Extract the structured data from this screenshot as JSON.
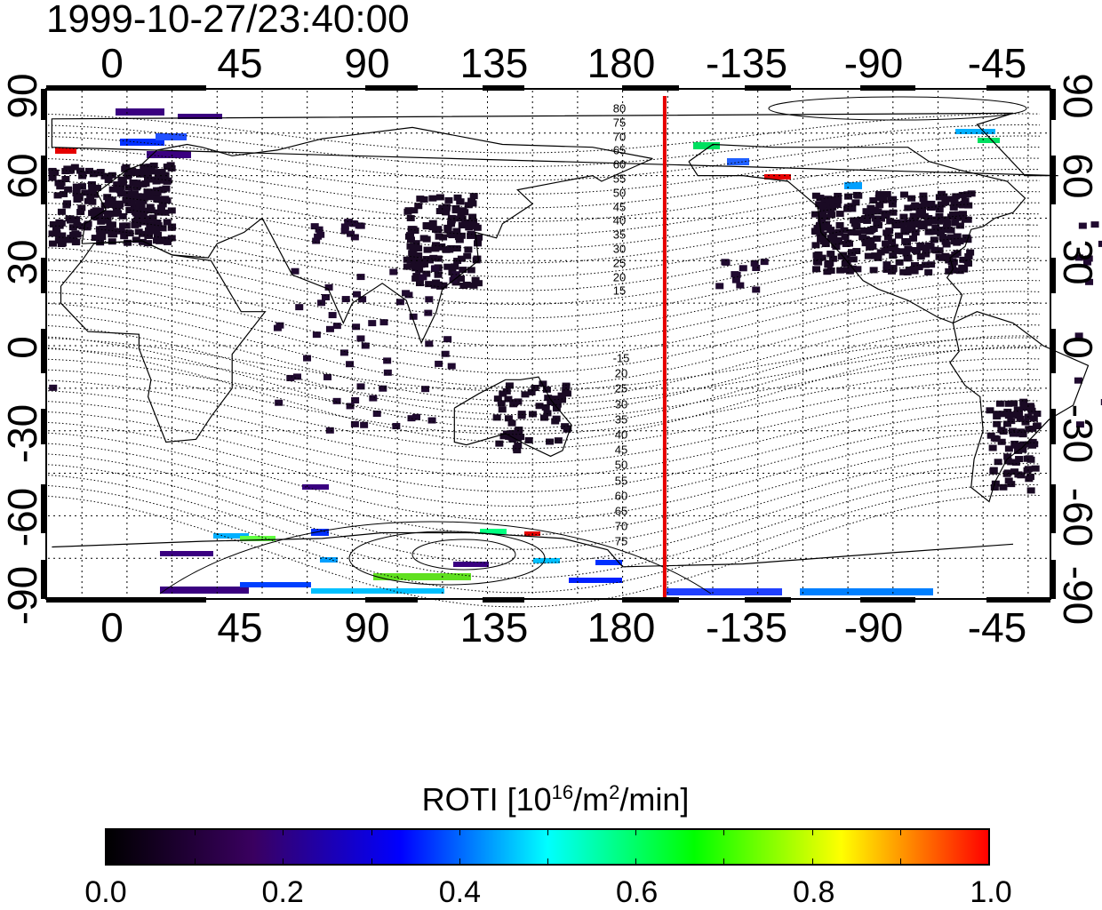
{
  "title": "1999-10-27/23:40:00",
  "map": {
    "x_ticks_top": [
      "0",
      "45",
      "90",
      "135",
      "180",
      "-135",
      "-90",
      "-45"
    ],
    "x_ticks_bottom": [
      "0",
      "45",
      "90",
      "135",
      "180",
      "-135",
      "-90",
      "-45"
    ],
    "y_ticks_left": [
      "90",
      "60",
      "30",
      "0",
      "-30",
      "-60",
      "-90"
    ],
    "y_ticks_right": [
      "90",
      "60",
      "30",
      "0",
      "-30",
      "-60",
      "-90"
    ],
    "geomagnetic_labels_north": [
      "80",
      "75",
      "70",
      "65",
      "60",
      "55",
      "50",
      "45",
      "40",
      "35",
      "30",
      "25",
      "20",
      "15"
    ],
    "geomagnetic_labels_south": [
      "-15",
      "20",
      "25",
      "30",
      "35",
      "40",
      "45",
      "50",
      "55",
      "60",
      "65",
      "70",
      "75"
    ],
    "marker_longitude": 184,
    "marker_color": "#e60000"
  },
  "colorbar": {
    "title": "ROTI  [10",
    "title_exp1": "16",
    "title_mid": "/m",
    "title_exp2": "2",
    "title_end": "/min]",
    "labels": [
      "0.0",
      "0.2",
      "0.4",
      "0.6",
      "0.8",
      "1.0"
    ],
    "colors": [
      "#000000",
      "#3a0060",
      "#0000ff",
      "#00ffff",
      "#00ff00",
      "#ffff00",
      "#ff0000"
    ]
  }
}
